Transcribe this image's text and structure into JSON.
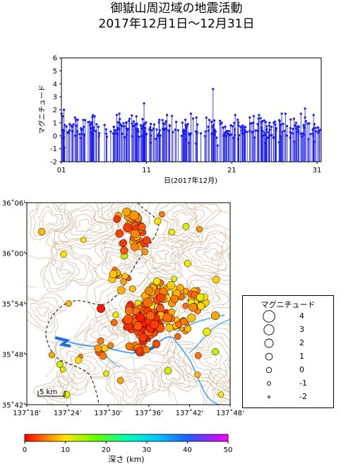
{
  "title_line1": "御嶽山周辺域の地震活動",
  "title_line2": "2017年12月1日～12月31日",
  "timeseries": {
    "ylabel": "マグニチュード",
    "xlabel": "日(2017年12月)",
    "yticks": [
      "-2",
      "-1",
      "0",
      "1",
      "2",
      "3",
      "4",
      "5",
      "6"
    ],
    "xticks": [
      "01",
      "11",
      "21",
      "31"
    ],
    "ylim": [
      -2,
      6
    ],
    "xlim": [
      1,
      31.5
    ],
    "color": "#1a1aff"
  },
  "map": {
    "lat_labels": [
      "36˚06'",
      "36˚00'",
      "35˚54'",
      "35˚48'",
      "35˚42'"
    ],
    "lon_labels": [
      "137˚18'",
      "137˚24'",
      "137˚30'",
      "137˚36'",
      "137˚42'",
      "137˚48'"
    ],
    "scale_label": "5 km",
    "contour_color": "#c8a07a",
    "river_color": "#3399ff"
  },
  "legend": {
    "title": "マグニチュード",
    "items": [
      {
        "label": "4",
        "mag": 4
      },
      {
        "label": "3",
        "mag": 3
      },
      {
        "label": "2",
        "mag": 2
      },
      {
        "label": "1",
        "mag": 1
      },
      {
        "label": "0",
        "mag": 0
      },
      {
        "label": "-1",
        "mag": -1
      },
      {
        "label": "-2",
        "mag": -2
      }
    ]
  },
  "colorbar": {
    "label": "深さ (km)",
    "ticks": [
      "0",
      "10",
      "20",
      "30",
      "40",
      "50"
    ]
  },
  "chart_data": {
    "type": "scatter",
    "title": "御嶽山周辺域の地震活動",
    "subtitle": "2017年12月1日～12月31日",
    "xlabel": "日(2017年12月)",
    "ylabel": "マグニチュード",
    "ylim": [
      -2,
      6
    ],
    "xlim": [
      1,
      31.5
    ],
    "notable_points": [
      {
        "x": 1.3,
        "y": 2.0
      },
      {
        "x": 10.7,
        "y": 2.5
      },
      {
        "x": 18.8,
        "y": 3.6
      },
      {
        "x": 29.6,
        "y": 2.1
      }
    ]
  }
}
